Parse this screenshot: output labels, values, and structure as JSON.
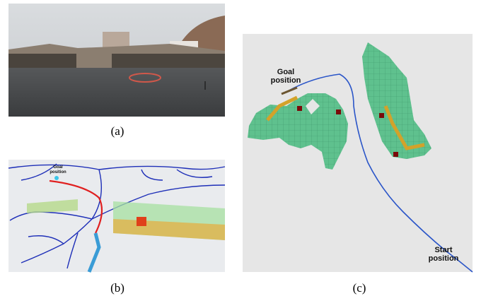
{
  "panels": [
    {
      "label": "(a)"
    },
    {
      "label": "(b)",
      "annotations": [
        "Goal position"
      ]
    },
    {
      "label": "(c)",
      "annotations": [
        "Goal position",
        "Start position"
      ]
    }
  ]
}
